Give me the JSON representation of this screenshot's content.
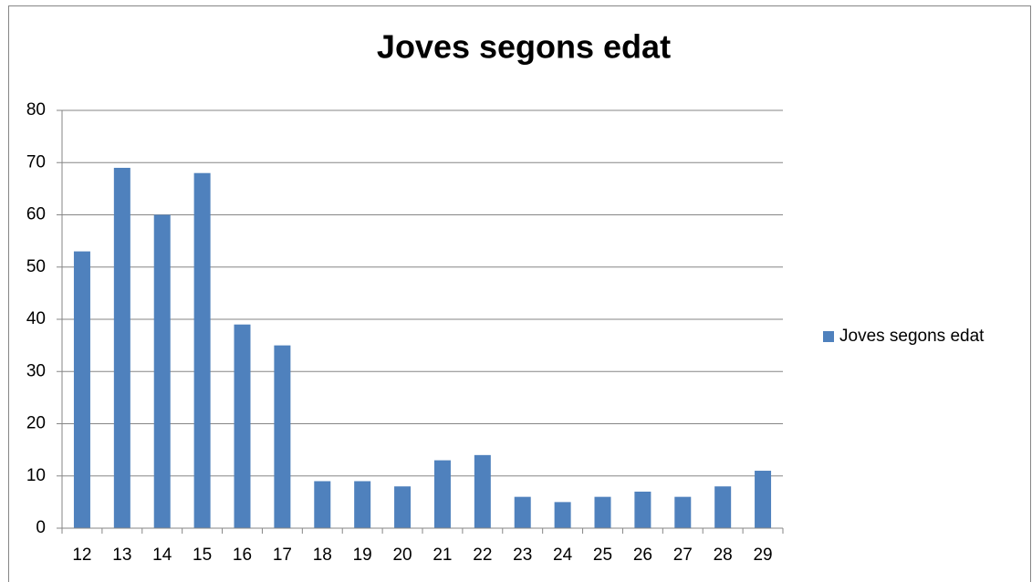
{
  "chart_data": {
    "type": "bar",
    "title": "Joves segons edat",
    "categories": [
      "12",
      "13",
      "14",
      "15",
      "16",
      "17",
      "18",
      "19",
      "20",
      "21",
      "22",
      "23",
      "24",
      "25",
      "26",
      "27",
      "28",
      "29"
    ],
    "series": [
      {
        "name": "Joves segons edat",
        "color": "#4f81bd",
        "values": [
          53,
          69,
          60,
          68,
          39,
          35,
          9,
          9,
          8,
          13,
          14,
          6,
          5,
          6,
          7,
          6,
          8,
          11
        ]
      }
    ],
    "ylim": [
      0,
      80
    ],
    "yticks": [
      0,
      10,
      20,
      30,
      40,
      50,
      60,
      70,
      80
    ],
    "grid": true,
    "legend": "right"
  }
}
